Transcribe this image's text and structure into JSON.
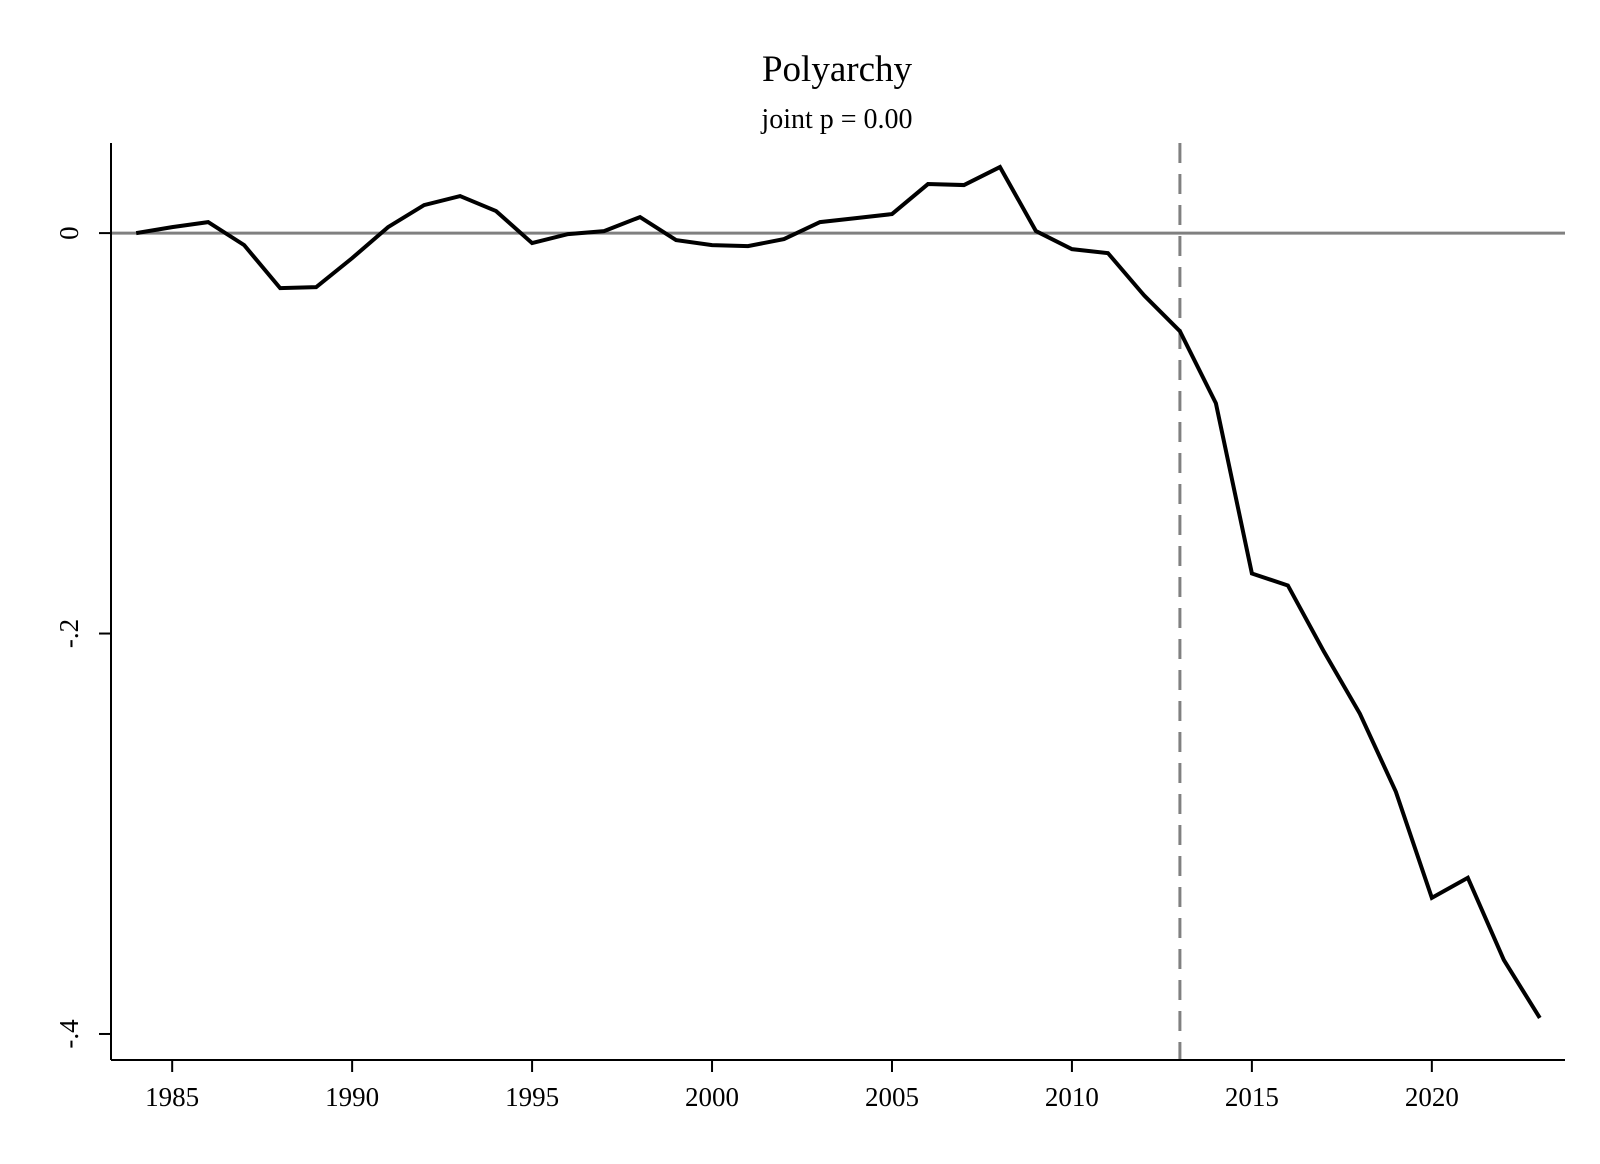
{
  "chart_data": {
    "type": "line",
    "title": "Polyarchy",
    "subtitle": "joint p = 0.00",
    "xlabel": "",
    "ylabel": "",
    "xlim": [
      1983.3,
      2023.7
    ],
    "ylim": [
      -0.413,
      0.045
    ],
    "x_ticks": [
      1985,
      1990,
      1995,
      2000,
      2005,
      2010,
      2015,
      2020
    ],
    "y_ticks": [
      0,
      -0.2,
      -0.4
    ],
    "y_tick_labels": [
      "0",
      "-.2",
      "-.4"
    ],
    "x_tick_labels": [
      "1985",
      "1990",
      "1995",
      "2000",
      "2005",
      "2010",
      "2015",
      "2020"
    ],
    "reference_lines": {
      "horizontal": {
        "y": 0,
        "color": "#808080",
        "style": "solid"
      },
      "vertical": {
        "x": 2013,
        "color": "#808080",
        "style": "dashed"
      }
    },
    "grid": false,
    "series": [
      {
        "color": "#000000",
        "x": [
          1984,
          1985,
          1986,
          1987,
          1988,
          1989,
          1990,
          1991,
          1992,
          1993,
          1994,
          1995,
          1996,
          1997,
          1998,
          1999,
          2000,
          2001,
          2002,
          2003,
          2004,
          2005,
          2006,
          2007,
          2008,
          2009,
          2010,
          2011,
          2012,
          2013,
          2014,
          2015,
          2016,
          2017,
          2018,
          2019,
          2020,
          2021,
          2022,
          2023
        ],
        "values": [
          0.0,
          0.003,
          0.0055,
          -0.006,
          -0.0275,
          -0.027,
          -0.0125,
          0.003,
          0.014,
          0.0185,
          0.011,
          -0.005,
          -0.0005,
          0.001,
          0.008,
          -0.0035,
          -0.006,
          -0.0065,
          -0.003,
          0.0055,
          0.0075,
          0.0095,
          0.0245,
          0.024,
          0.033,
          0.001,
          -0.008,
          -0.01,
          -0.031,
          -0.049,
          -0.085,
          -0.17,
          -0.176,
          -0.209,
          -0.24,
          -0.279,
          -0.332,
          -0.322,
          -0.363,
          -0.392
        ]
      }
    ]
  }
}
